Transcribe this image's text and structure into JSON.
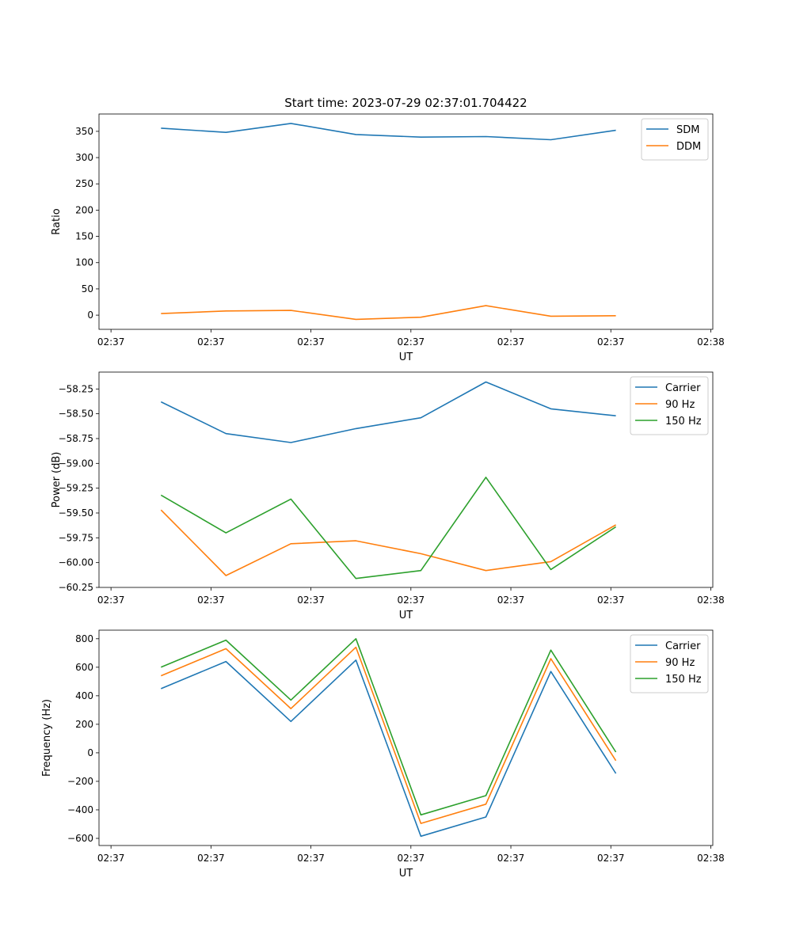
{
  "chart_data": [
    {
      "type": "line",
      "title": "Start time: 2023-07-29 02:37:01.704422",
      "xlabel": "UT",
      "ylabel": "Ratio",
      "x_tick_labels": [
        "02:37",
        "02:37",
        "02:37",
        "02:37",
        "02:37",
        "02:37",
        "02:38"
      ],
      "x_tick_positions": [
        0,
        1,
        2,
        3,
        4,
        5,
        6
      ],
      "xlim": [
        -0.12,
        6.02
      ],
      "ylim": [
        -27,
        383
      ],
      "y_ticks": [
        0,
        50,
        100,
        150,
        200,
        250,
        300,
        350
      ],
      "y_tick_labels": [
        "0",
        "50",
        "100",
        "150",
        "200",
        "250",
        "300",
        "350"
      ],
      "x": [
        0.5,
        1.15,
        1.8,
        2.45,
        3.1,
        3.75,
        4.4,
        5.05
      ],
      "legend_position": "top-right",
      "series": [
        {
          "name": "SDM",
          "color": "#1f77b4",
          "values": [
            356,
            348,
            365,
            344,
            339,
            340,
            334,
            352
          ]
        },
        {
          "name": "DDM",
          "color": "#ff7f0e",
          "values": [
            3,
            8,
            9,
            -8,
            -4,
            18,
            -2,
            -1
          ]
        }
      ]
    },
    {
      "type": "line",
      "title": "",
      "xlabel": "UT",
      "ylabel": "Power (dB)",
      "x_tick_labels": [
        "02:37",
        "02:37",
        "02:37",
        "02:37",
        "02:37",
        "02:37",
        "02:38"
      ],
      "x_tick_positions": [
        0,
        1,
        2,
        3,
        4,
        5,
        6
      ],
      "xlim": [
        -0.12,
        6.02
      ],
      "ylim": [
        -60.25,
        -58.08
      ],
      "y_ticks": [
        -60.25,
        -60.0,
        -59.75,
        -59.5,
        -59.25,
        -59.0,
        -58.75,
        -58.5,
        -58.25
      ],
      "y_tick_labels": [
        "−60.25",
        "−60.00",
        "−59.75",
        "−59.50",
        "−59.25",
        "−59.00",
        "−58.75",
        "−58.50",
        "−58.25"
      ],
      "x": [
        0.5,
        1.15,
        1.8,
        2.45,
        3.1,
        3.75,
        4.4,
        5.05
      ],
      "legend_position": "top-right",
      "series": [
        {
          "name": "Carrier",
          "color": "#1f77b4",
          "values": [
            -58.38,
            -58.7,
            -58.79,
            -58.65,
            -58.54,
            -58.18,
            -58.45,
            -58.52
          ]
        },
        {
          "name": "90 Hz",
          "color": "#ff7f0e",
          "values": [
            -59.47,
            -60.13,
            -59.81,
            -59.78,
            -59.91,
            -60.08,
            -59.99,
            -59.62
          ]
        },
        {
          "name": "150 Hz",
          "color": "#2ca02c",
          "values": [
            -59.32,
            -59.7,
            -59.36,
            -60.16,
            -60.08,
            -59.14,
            -60.07,
            -59.64
          ]
        }
      ]
    },
    {
      "type": "line",
      "title": "",
      "xlabel": "UT",
      "ylabel": "Frequency (Hz)",
      "x_tick_labels": [
        "02:37",
        "02:37",
        "02:37",
        "02:37",
        "02:37",
        "02:37",
        "02:38"
      ],
      "x_tick_positions": [
        0,
        1,
        2,
        3,
        4,
        5,
        6
      ],
      "xlim": [
        -0.12,
        6.02
      ],
      "ylim": [
        -650,
        860
      ],
      "y_ticks": [
        -600,
        -400,
        -200,
        0,
        200,
        400,
        600,
        800
      ],
      "y_tick_labels": [
        "−600",
        "−400",
        "−200",
        "0",
        "200",
        "400",
        "600",
        "800"
      ],
      "x": [
        0.5,
        1.15,
        1.8,
        2.45,
        3.1,
        3.75,
        4.4,
        5.05
      ],
      "legend_position": "top-right",
      "series": [
        {
          "name": "Carrier",
          "color": "#1f77b4",
          "values": [
            450,
            640,
            220,
            650,
            -585,
            -450,
            570,
            -145
          ]
        },
        {
          "name": "90 Hz",
          "color": "#ff7f0e",
          "values": [
            540,
            730,
            310,
            740,
            -495,
            -360,
            660,
            -55
          ]
        },
        {
          "name": "150 Hz",
          "color": "#2ca02c",
          "values": [
            600,
            790,
            370,
            800,
            -435,
            -300,
            720,
            5
          ]
        }
      ]
    }
  ]
}
